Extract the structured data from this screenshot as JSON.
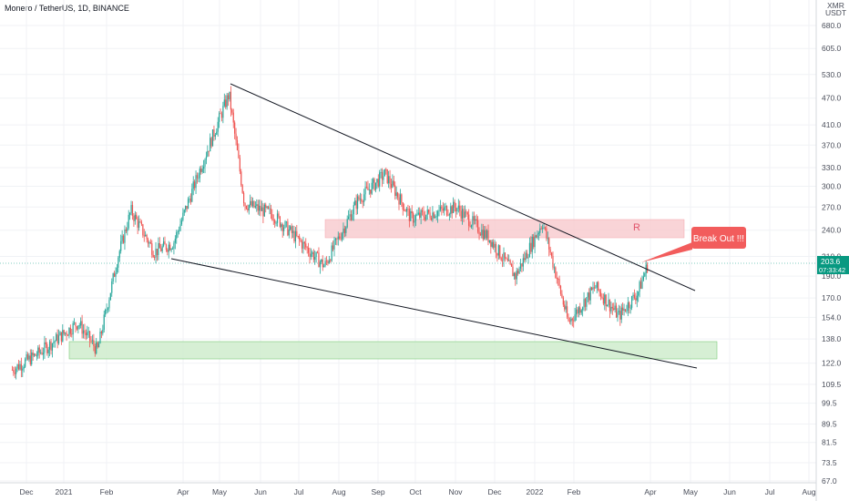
{
  "header": {
    "title": "Monero / TetherUS, 1D, BINANCE",
    "currency_top": "XMR",
    "currency_bottom": "USDT"
  },
  "price_axis": {
    "labels": [
      "680.0",
      "605.0",
      "530.0",
      "470.0",
      "410.0",
      "370.0",
      "330.0",
      "300.0",
      "270.0",
      "240.0",
      "210.0",
      "190.0",
      "170.0",
      "154.0",
      "138.0",
      "122.0",
      "109.5",
      "99.5",
      "89.5",
      "81.5",
      "73.5",
      "67.0"
    ]
  },
  "time_axis": {
    "labels": [
      "Dec",
      "2021",
      "Feb",
      "Apr",
      "May",
      "Jun",
      "Jul",
      "Aug",
      "Sep",
      "Oct",
      "Nov",
      "Dec",
      "2022",
      "Feb",
      "Apr",
      "May",
      "Jun",
      "Jul",
      "Aug"
    ]
  },
  "last_price": {
    "price": "203.6",
    "countdown": "07:33:42",
    "color": "#089981"
  },
  "annotations": {
    "resistance_label": "R",
    "callout_text": "Break Out !!!"
  },
  "colors": {
    "up": "#26a69a",
    "down": "#ef5350",
    "resistance_zone": "#f8c9cd",
    "support_zone": "#cfeccc",
    "trendline": "#131722",
    "callout": "#f25c5c"
  },
  "chart_data": {
    "type": "candlestick",
    "symbol": "XMRUSDT",
    "interval": "1D",
    "exchange": "BINANCE",
    "scale": "log",
    "ylim": [
      67.0,
      680.0
    ],
    "x_range": [
      "2020-11-15",
      "2022-08-31"
    ],
    "last_price": 203.6,
    "approx_path": [
      {
        "date": "2020-11-20",
        "close": 118
      },
      {
        "date": "2020-12-10",
        "close": 128
      },
      {
        "date": "2021-01-10",
        "close": 150
      },
      {
        "date": "2021-01-25",
        "close": 130
      },
      {
        "date": "2021-02-10",
        "close": 210
      },
      {
        "date": "2021-02-20",
        "close": 265
      },
      {
        "date": "2021-03-10",
        "close": 215
      },
      {
        "date": "2021-03-25",
        "close": 225
      },
      {
        "date": "2021-04-15",
        "close": 330
      },
      {
        "date": "2021-05-07",
        "close": 480
      },
      {
        "date": "2021-05-19",
        "close": 275
      },
      {
        "date": "2021-06-10",
        "close": 260
      },
      {
        "date": "2021-07-20",
        "close": 200
      },
      {
        "date": "2021-08-15",
        "close": 280
      },
      {
        "date": "2021-09-05",
        "close": 320
      },
      {
        "date": "2021-09-25",
        "close": 255
      },
      {
        "date": "2021-10-30",
        "close": 270
      },
      {
        "date": "2021-11-25",
        "close": 230
      },
      {
        "date": "2021-12-15",
        "close": 190
      },
      {
        "date": "2022-01-05",
        "close": 250
      },
      {
        "date": "2022-01-25",
        "close": 150
      },
      {
        "date": "2022-02-15",
        "close": 180
      },
      {
        "date": "2022-03-05",
        "close": 155
      },
      {
        "date": "2022-03-20",
        "close": 175
      },
      {
        "date": "2022-03-28",
        "close": 203.6
      }
    ],
    "overlays": [
      {
        "type": "trendline",
        "from": {
          "date": "2021-05-07",
          "price": 520
        },
        "to": {
          "date": "2022-05-15",
          "price": 172
        }
      },
      {
        "type": "trendline",
        "from": {
          "date": "2021-03-20",
          "price": 205
        },
        "to": {
          "date": "2022-05-15",
          "price": 118
        }
      },
      {
        "type": "zone",
        "label": "R",
        "x": [
          "2021-07-10",
          "2022-04-20"
        ],
        "y": [
          232,
          252
        ]
      },
      {
        "type": "zone",
        "x": [
          "2020-12-25",
          "2022-04-30"
        ],
        "y": [
          124,
          134
        ]
      }
    ]
  }
}
